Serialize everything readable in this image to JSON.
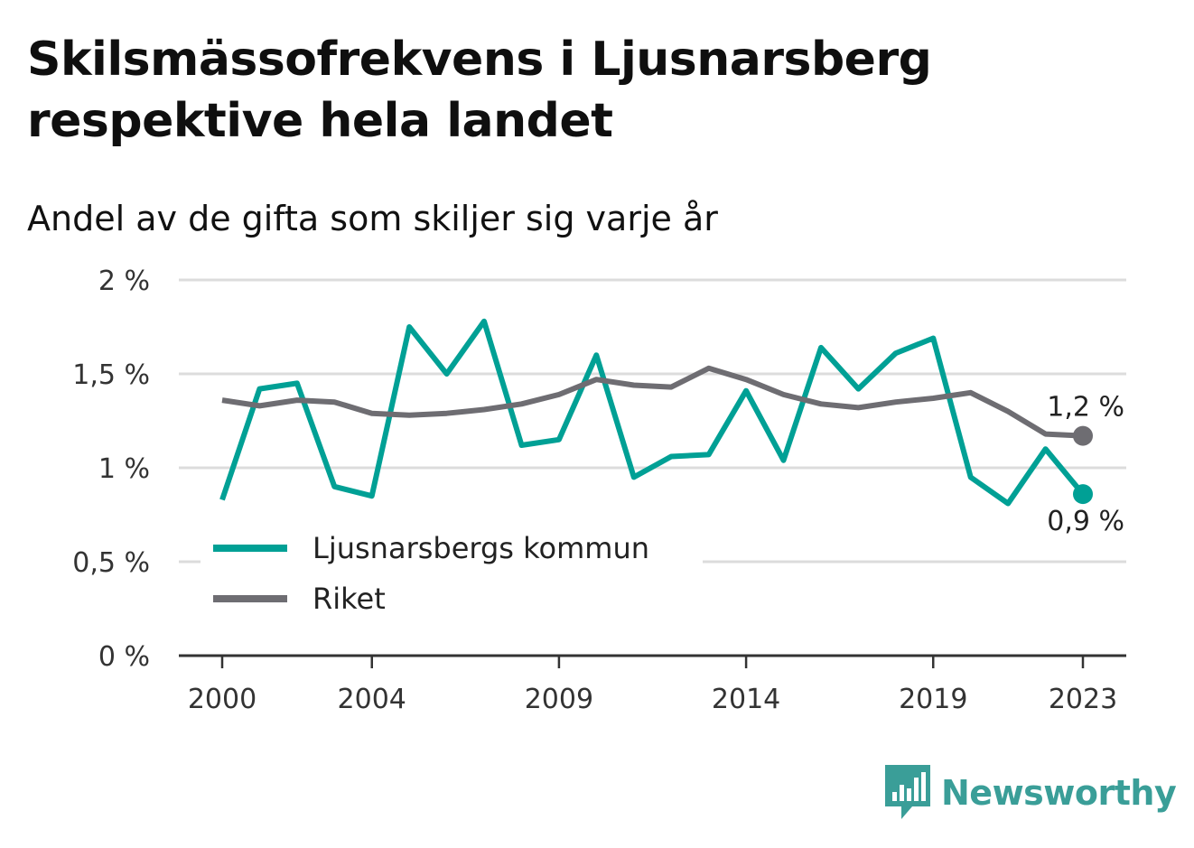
{
  "title": "Skilsmässofrekvens i Ljusnarsberg respektive hela landet",
  "subtitle": "Andel av de gifta som skiljer sig varje år",
  "brand": "Newsworthy",
  "colors": {
    "kommun": "#00a095",
    "riket": "#6e6d72",
    "grid": "#dcdcdc",
    "axis": "#333333",
    "brand": "#3a9e98"
  },
  "chart_data": {
    "type": "line",
    "x": [
      2000,
      2001,
      2002,
      2003,
      2004,
      2005,
      2006,
      2007,
      2008,
      2009,
      2010,
      2011,
      2012,
      2013,
      2014,
      2015,
      2016,
      2017,
      2018,
      2019,
      2020,
      2021,
      2022,
      2023
    ],
    "series": [
      {
        "name": "Ljusnarsbergs kommun",
        "color": "#00a095",
        "values": [
          0.83,
          1.42,
          1.45,
          0.9,
          0.85,
          1.75,
          1.5,
          1.78,
          1.12,
          1.15,
          1.6,
          0.95,
          1.06,
          1.07,
          1.41,
          1.04,
          1.64,
          1.42,
          1.61,
          1.69,
          0.95,
          0.81,
          1.1,
          0.86
        ],
        "end_label": "0,9 %"
      },
      {
        "name": "Riket",
        "color": "#6e6d72",
        "values": [
          1.36,
          1.33,
          1.36,
          1.35,
          1.29,
          1.28,
          1.29,
          1.31,
          1.34,
          1.39,
          1.47,
          1.44,
          1.43,
          1.53,
          1.47,
          1.39,
          1.34,
          1.32,
          1.35,
          1.37,
          1.4,
          1.3,
          1.18,
          1.17
        ],
        "end_label": "1,2 %"
      }
    ],
    "ylim": [
      0,
      2
    ],
    "y_ticks": [
      0,
      0.5,
      1,
      1.5,
      2
    ],
    "y_tick_labels": [
      "0 %",
      "0,5 %",
      "1 %",
      "1,5 %",
      "2 %"
    ],
    "x_ticks": [
      2000,
      2004,
      2009,
      2014,
      2019,
      2023
    ],
    "x_tick_labels": [
      "2000",
      "2004",
      "2009",
      "2014",
      "2019",
      "2023"
    ],
    "grid": true,
    "legend": "bottom-left"
  }
}
